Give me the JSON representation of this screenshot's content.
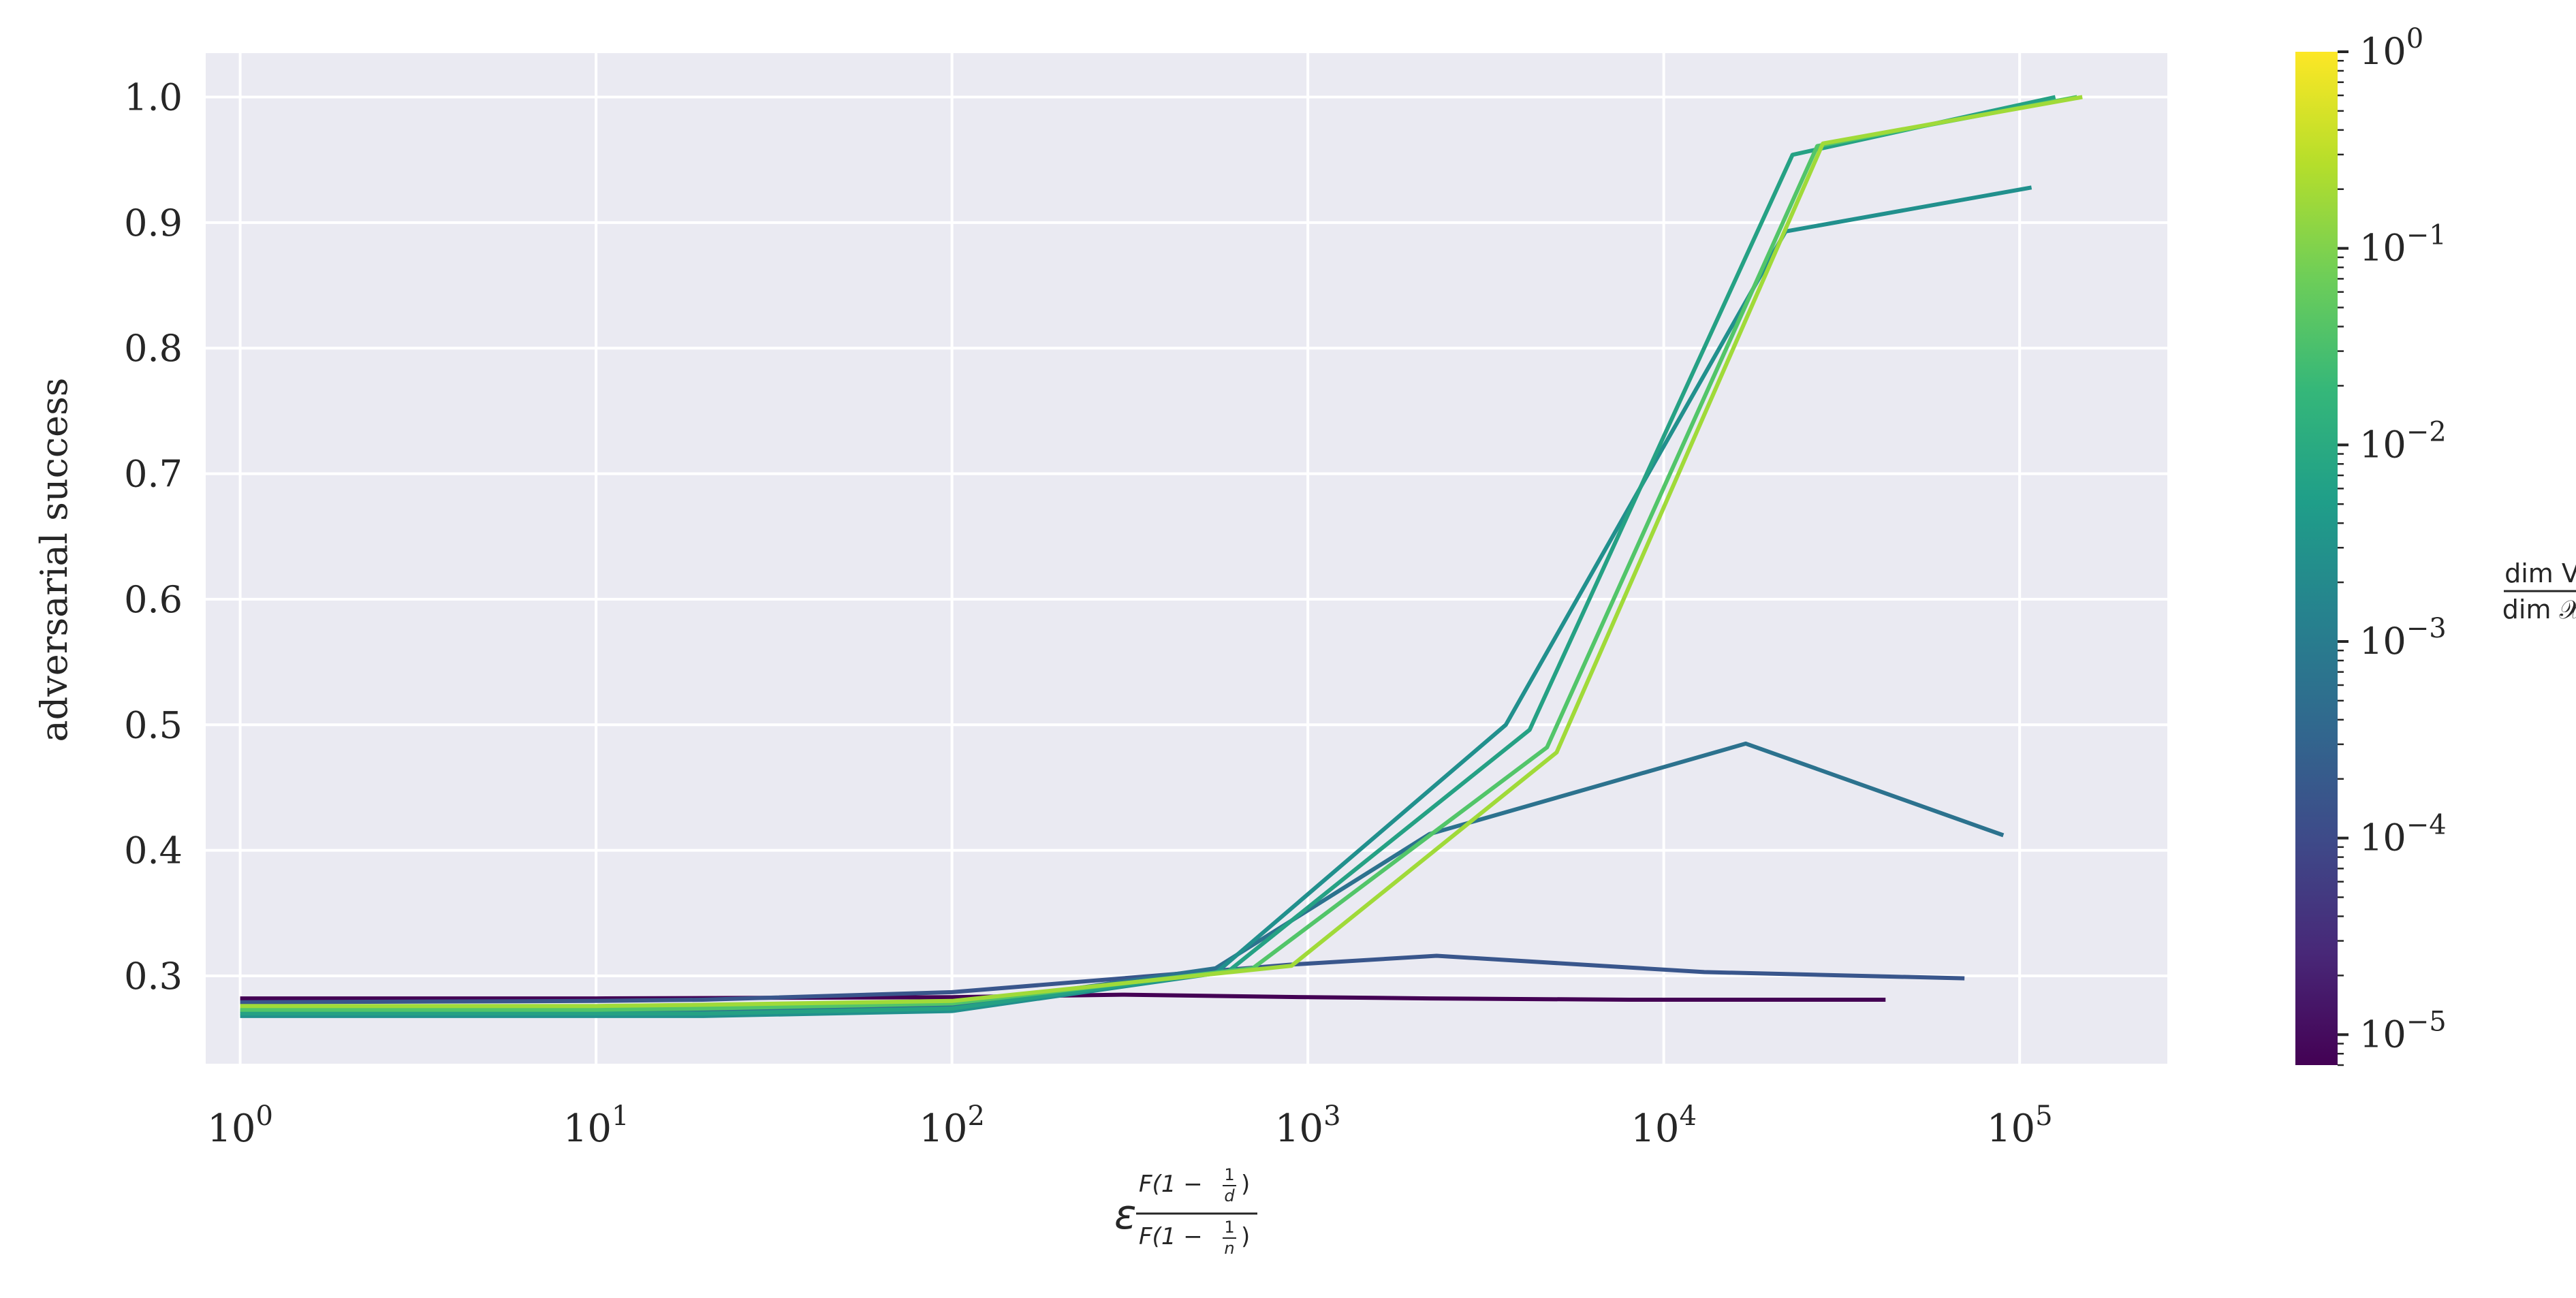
{
  "chart_data": {
    "type": "line",
    "xlabel": "ε F(1−1/d) / F(1−1/n)",
    "xlabel_parts": {
      "epsilon": "ε",
      "sup_num": "F(1 − ",
      "sup_frac_top": "1",
      "sup_frac_bot": "d",
      "sup_close": ")",
      "sub_num": "F(1 − ",
      "sub_frac_top": "1",
      "sub_frac_bot": "n",
      "sub_close": ")"
    },
    "ylabel": "adversarial success",
    "x_scale": "log",
    "xlim": [
      0.8,
      260000
    ],
    "ylim": [
      0.23,
      1.035
    ],
    "x_ticks": [
      {
        "value": 1,
        "base": "10",
        "exp": "0"
      },
      {
        "value": 10,
        "base": "10",
        "exp": "1"
      },
      {
        "value": 100,
        "base": "10",
        "exp": "2"
      },
      {
        "value": 1000,
        "base": "10",
        "exp": "3"
      },
      {
        "value": 10000,
        "base": "10",
        "exp": "4"
      },
      {
        "value": 100000,
        "base": "10",
        "exp": "5"
      }
    ],
    "y_ticks": [
      "0.3",
      "0.4",
      "0.5",
      "0.6",
      "0.7",
      "0.8",
      "0.9",
      "1.0"
    ],
    "grid": true,
    "background": "#eaeaf2",
    "series": [
      {
        "color": "#440154",
        "x": [
          1,
          10,
          100,
          300,
          1000,
          2200,
          8000,
          42000
        ],
        "y": [
          0.282,
          0.282,
          0.283,
          0.285,
          0.283,
          0.282,
          0.281,
          0.281
        ]
      },
      {
        "color": "#39568c",
        "x": [
          1,
          10,
          20,
          100,
          900,
          2300,
          13000,
          70000
        ],
        "y": [
          0.279,
          0.28,
          0.281,
          0.287,
          0.309,
          0.316,
          0.303,
          0.298
        ]
      },
      {
        "color": "#2c728e",
        "x": [
          1,
          10,
          20,
          100,
          550,
          2200,
          17000,
          90000
        ],
        "y": [
          0.272,
          0.272,
          0.272,
          0.276,
          0.306,
          0.413,
          0.485,
          0.412
        ]
      },
      {
        "color": "#21908d",
        "x": [
          1,
          10,
          20,
          100,
          550,
          3600,
          22000,
          108000
        ],
        "y": [
          0.268,
          0.268,
          0.268,
          0.272,
          0.302,
          0.5,
          0.893,
          0.928
        ]
      },
      {
        "color": "#25a184",
        "x": [
          1,
          10,
          20,
          100,
          600,
          4200,
          23000,
          126000
        ],
        "y": [
          0.27,
          0.27,
          0.27,
          0.274,
          0.304,
          0.496,
          0.954,
          1.0
        ]
      },
      {
        "color": "#52c569",
        "x": [
          1,
          10,
          20,
          100,
          700,
          4700,
          27000,
          145000
        ],
        "y": [
          0.273,
          0.273,
          0.274,
          0.278,
          0.306,
          0.482,
          0.961,
          1.0
        ]
      },
      {
        "color": "#a0da39",
        "x": [
          1,
          10,
          20,
          100,
          900,
          5000,
          28000,
          150000
        ],
        "y": [
          0.276,
          0.276,
          0.277,
          0.28,
          0.308,
          0.478,
          0.963,
          1.0
        ]
      }
    ],
    "colorbar": {
      "label_num": "dim V",
      "label_den": "dim 𝒳",
      "scale": "log",
      "range": [
        7e-06,
        1
      ],
      "colormap": "viridis",
      "ticks": [
        {
          "value": 1,
          "base": "10",
          "exp": "0"
        },
        {
          "value": 0.1,
          "base": "10",
          "exp": "−1"
        },
        {
          "value": 0.01,
          "base": "10",
          "exp": "−2"
        },
        {
          "value": 0.001,
          "base": "10",
          "exp": "−3"
        },
        {
          "value": 0.0001,
          "base": "10",
          "exp": "−4"
        },
        {
          "value": 1e-05,
          "base": "10",
          "exp": "−5"
        }
      ]
    }
  }
}
